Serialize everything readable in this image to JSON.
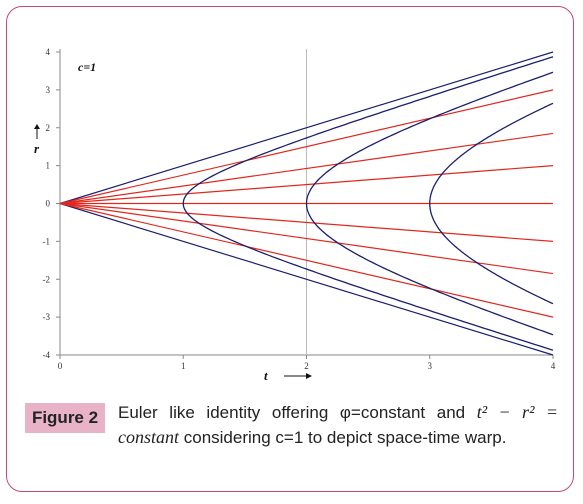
{
  "chart_data": {
    "type": "line",
    "annotation": "c=1",
    "xlabel": "t",
    "ylabel": "r",
    "xlim": [
      0,
      4
    ],
    "ylim": [
      -4,
      4
    ],
    "x_ticks": [
      "0",
      "1",
      "2",
      "3",
      "4"
    ],
    "y_ticks": [
      "4",
      "3",
      "2",
      "1",
      "0",
      "-1",
      "-2",
      "-3",
      "-4"
    ],
    "vertical_gridline_x": 2,
    "grid": false,
    "colors": {
      "rays": "#e0281e",
      "curves": "#1a1f6e",
      "axes": "#888888",
      "gridline": "#bbbbbb"
    },
    "series": [
      {
        "type": "ray",
        "x": [
          0,
          4
        ],
        "y": [
          0,
          4
        ],
        "color": "curves"
      },
      {
        "type": "ray",
        "x": [
          0,
          4
        ],
        "y": [
          0,
          -4
        ],
        "color": "curves"
      },
      {
        "type": "ray",
        "x": [
          0,
          4
        ],
        "y": [
          0,
          3.0
        ],
        "color": "rays"
      },
      {
        "type": "ray",
        "x": [
          0,
          4
        ],
        "y": [
          0,
          1.85
        ],
        "color": "rays"
      },
      {
        "type": "ray",
        "x": [
          0,
          4
        ],
        "y": [
          0,
          1.0
        ],
        "color": "rays"
      },
      {
        "type": "ray",
        "x": [
          0,
          4
        ],
        "y": [
          0,
          0
        ],
        "color": "rays"
      },
      {
        "type": "ray",
        "x": [
          0,
          4
        ],
        "y": [
          0,
          -1.0
        ],
        "color": "rays"
      },
      {
        "type": "ray",
        "x": [
          0,
          4
        ],
        "y": [
          0,
          -1.85
        ],
        "color": "rays"
      },
      {
        "type": "ray",
        "x": [
          0,
          4
        ],
        "y": [
          0,
          -3.0
        ],
        "color": "rays"
      },
      {
        "type": "hyperbola",
        "constant": 1,
        "t_max": 4,
        "color": "curves"
      },
      {
        "type": "hyperbola",
        "constant": 4,
        "t_max": 4,
        "color": "curves"
      },
      {
        "type": "hyperbola",
        "constant": 9,
        "t_max": 4,
        "color": "curves"
      }
    ]
  },
  "figure": {
    "label": "Figure 2",
    "caption_part1": "Euler like identity offering φ=constant and",
    "equation": "t² − r² = constant",
    "caption_part2": "considering c=1 to depict space-time warp."
  }
}
